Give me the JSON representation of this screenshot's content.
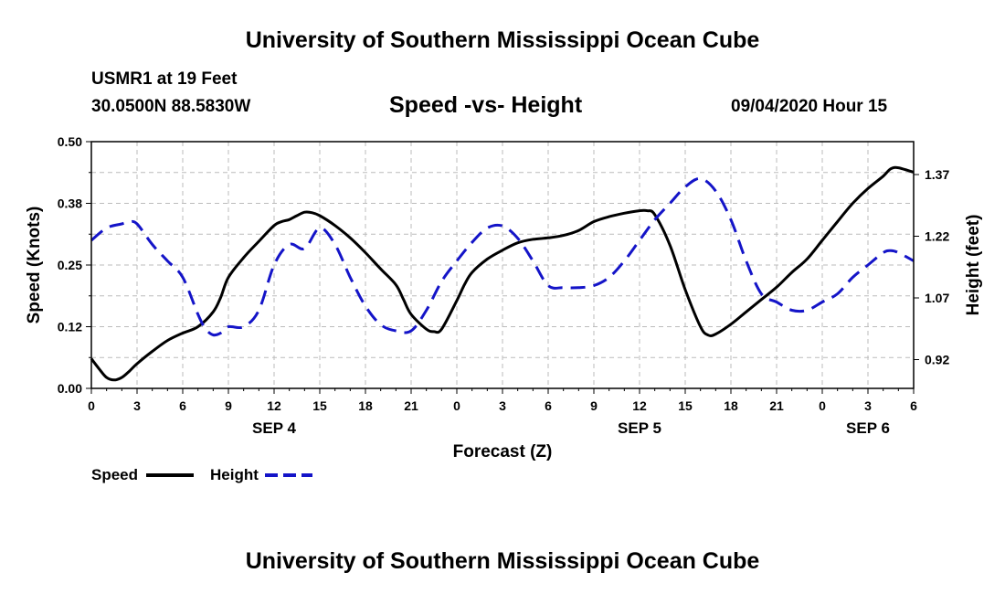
{
  "page": {
    "title_top": "University of Southern Mississippi Ocean Cube",
    "title_bottom": "University of Southern Mississippi Ocean Cube",
    "station": "USMR1 at 19 Feet",
    "coordinates": "30.0500N 88.5830W",
    "subtitle": "Speed -vs- Height",
    "datetime": "09/04/2020 Hour 15"
  },
  "colors": {
    "speed": "#000000",
    "height": "#1414c8",
    "grid": "#bbbbbb"
  },
  "chart_data": {
    "type": "line",
    "title": "Speed -vs- Height",
    "xlabel": "Forecast (Z)",
    "ylabel_left": "Speed (Knots)",
    "ylabel_right": "Height (feet)",
    "x_unit": "hours from SEP 4 00Z",
    "xlim": [
      0,
      54
    ],
    "ylim_left": [
      0,
      0.5
    ],
    "ylim_right": [
      0.85,
      1.45
    ],
    "x_ticks": [
      0,
      3,
      6,
      9,
      12,
      15,
      18,
      21,
      24,
      27,
      30,
      33,
      36,
      39,
      42,
      45,
      48,
      51,
      54
    ],
    "x_tick_labels": [
      "0",
      "3",
      "6",
      "9",
      "12",
      "15",
      "18",
      "21",
      "0",
      "3",
      "6",
      "9",
      "12",
      "15",
      "18",
      "21",
      "0",
      "3",
      "6"
    ],
    "date_labels": [
      {
        "x": 12,
        "label": "SEP 4"
      },
      {
        "x": 36,
        "label": "SEP 5"
      },
      {
        "x": 51,
        "label": "SEP 6"
      }
    ],
    "y_left_ticks": [
      0.0,
      0.125,
      0.25,
      0.375,
      0.5
    ],
    "y_left_tick_labels": [
      "0.00",
      "0.12",
      "0.25",
      "0.38",
      "0.50"
    ],
    "y_right_ticks": [
      0.92,
      1.07,
      1.22,
      1.37
    ],
    "y_right_tick_labels": [
      "0.92",
      "1.07",
      "1.22",
      "1.37"
    ],
    "legend": [
      {
        "name": "Speed"
      },
      {
        "name": "Height"
      }
    ],
    "series": [
      {
        "name": "Speed",
        "axis": "left",
        "style": "solid",
        "x": [
          0,
          0.5,
          1,
          1.5,
          2,
          2.5,
          3,
          4,
          5,
          6,
          7,
          8,
          8.5,
          9,
          10,
          11,
          12,
          12.5,
          13,
          13.5,
          14,
          14.5,
          15,
          16,
          17,
          18,
          19,
          20,
          20.5,
          21,
          22,
          22.5,
          23,
          24,
          24.5,
          25,
          26,
          27,
          28,
          29,
          30,
          31,
          32,
          33,
          34,
          35,
          36,
          36.5,
          37,
          38,
          39,
          40,
          40.5,
          41,
          42,
          43,
          44,
          45,
          46,
          47,
          48,
          49,
          50,
          51,
          52,
          52.5,
          53,
          54
        ],
        "values": [
          0.06,
          0.04,
          0.022,
          0.017,
          0.022,
          0.035,
          0.05,
          0.075,
          0.097,
          0.112,
          0.125,
          0.155,
          0.185,
          0.225,
          0.265,
          0.298,
          0.33,
          0.338,
          0.342,
          0.35,
          0.357,
          0.356,
          0.35,
          0.33,
          0.305,
          0.275,
          0.242,
          0.21,
          0.18,
          0.15,
          0.12,
          0.115,
          0.12,
          0.178,
          0.21,
          0.235,
          0.262,
          0.28,
          0.295,
          0.302,
          0.305,
          0.31,
          0.32,
          0.338,
          0.348,
          0.355,
          0.36,
          0.36,
          0.352,
          0.29,
          0.2,
          0.125,
          0.108,
          0.11,
          0.13,
          0.155,
          0.18,
          0.205,
          0.235,
          0.262,
          0.3,
          0.338,
          0.375,
          0.405,
          0.43,
          0.445,
          0.447,
          0.438
        ]
      },
      {
        "name": "Height",
        "axis": "right",
        "style": "dashed",
        "x": [
          0,
          1,
          2,
          2.5,
          3,
          4,
          5,
          6,
          7,
          7.5,
          8,
          8.5,
          9,
          10,
          11,
          12,
          13,
          14,
          15,
          16,
          17,
          18,
          19,
          20,
          21,
          22,
          23,
          24,
          25,
          26,
          27,
          28,
          29,
          30,
          31,
          32,
          33,
          34,
          35,
          36,
          37,
          38,
          39,
          40,
          41,
          42,
          43,
          44,
          45,
          46,
          47,
          48,
          49,
          50,
          51,
          52,
          52.5,
          53,
          54
        ],
        "values": [
          1.21,
          1.24,
          1.25,
          1.255,
          1.25,
          1.2,
          1.16,
          1.12,
          1.03,
          0.995,
          0.98,
          0.985,
          1.0,
          1.0,
          1.04,
          1.15,
          1.2,
          1.19,
          1.24,
          1.2,
          1.12,
          1.05,
          1.005,
          0.99,
          0.99,
          1.04,
          1.11,
          1.16,
          1.205,
          1.24,
          1.245,
          1.215,
          1.16,
          1.1,
          1.095,
          1.095,
          1.1,
          1.12,
          1.16,
          1.21,
          1.26,
          1.3,
          1.34,
          1.36,
          1.33,
          1.26,
          1.16,
          1.08,
          1.06,
          1.04,
          1.04,
          1.06,
          1.08,
          1.12,
          1.15,
          1.18,
          1.185,
          1.18,
          1.16
        ]
      }
    ]
  }
}
